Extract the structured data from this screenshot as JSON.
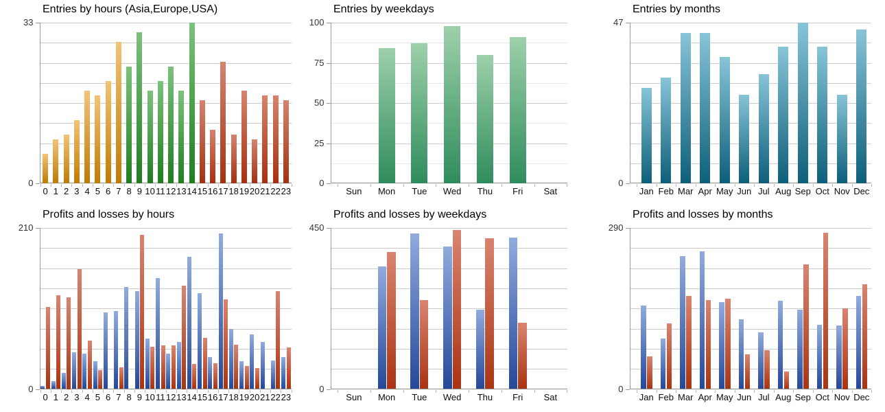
{
  "page": {
    "background": "#ffffff"
  },
  "chart_data": {
    "note": "see charts[]"
  },
  "charts": [
    {
      "id": "entries-by-hours",
      "type": "bar",
      "title": "Entries by hours (Asia,Europe,USA)",
      "categories": [
        "0",
        "1",
        "2",
        "3",
        "4",
        "5",
        "6",
        "7",
        "8",
        "9",
        "10",
        "11",
        "12",
        "13",
        "14",
        "15",
        "16",
        "17",
        "18",
        "19",
        "20",
        "21",
        "22",
        "23"
      ],
      "values": [
        6,
        9,
        10,
        13,
        19,
        18,
        21,
        29,
        24,
        31,
        19,
        21,
        24,
        19,
        33,
        17,
        11,
        25,
        10,
        19,
        9,
        18,
        18,
        17
      ],
      "color_groups": [
        {
          "name": "Asia",
          "from": 0,
          "to": 7,
          "color_top": "#F2C377",
          "color_bottom": "#C07A04"
        },
        {
          "name": "Europe",
          "from": 8,
          "to": 14,
          "color_top": "#7CC27C",
          "color_bottom": "#1F7D1F"
        },
        {
          "name": "USA",
          "from": 15,
          "to": 23,
          "color_top": "#D5836E",
          "color_bottom": "#A43110"
        }
      ],
      "ylim": [
        0,
        33
      ],
      "y_ticks": [
        {
          "value": 33,
          "label": "33"
        },
        {
          "value": 0,
          "label": "0"
        }
      ],
      "divisions": 8,
      "minor_alternate": false
    },
    {
      "id": "entries-by-weekdays",
      "type": "bar",
      "title": "Entries by weekdays",
      "categories": [
        "Sun",
        "Mon",
        "Tue",
        "Wed",
        "Thu",
        "Fri",
        "Sat"
      ],
      "values": [
        0,
        84,
        87,
        98,
        80,
        91,
        0
      ],
      "color_top": "#9DD0AB",
      "color_bottom": "#2F8C5D",
      "ylim": [
        0,
        100
      ],
      "y_ticks": [
        {
          "value": 100,
          "label": "100"
        },
        {
          "value": 75,
          "label": "75"
        },
        {
          "value": 50,
          "label": "50"
        },
        {
          "value": 25,
          "label": "25"
        },
        {
          "value": 0,
          "label": "0"
        }
      ],
      "divisions": 8,
      "minor_alternate": true
    },
    {
      "id": "entries-by-months",
      "type": "bar",
      "title": "Entries by months",
      "categories": [
        "Jan",
        "Feb",
        "Mar",
        "Apr",
        "May",
        "Jun",
        "Jul",
        "Aug",
        "Sep",
        "Oct",
        "Nov",
        "Dec"
      ],
      "values": [
        28,
        31,
        44,
        44,
        37,
        26,
        32,
        40,
        47,
        40,
        26,
        45
      ],
      "color_top": "#87C4D8",
      "color_bottom": "#0D5F79",
      "ylim": [
        0,
        47
      ],
      "y_ticks": [
        {
          "value": 47,
          "label": "47"
        },
        {
          "value": 0,
          "label": "0"
        }
      ],
      "divisions": 8,
      "minor_alternate": false
    },
    {
      "id": "profits-losses-by-hours",
      "type": "bar",
      "title": "Profits and losses by hours",
      "categories": [
        "0",
        "1",
        "2",
        "3",
        "4",
        "5",
        "6",
        "7",
        "8",
        "9",
        "10",
        "11",
        "12",
        "13",
        "14",
        "15",
        "16",
        "17",
        "18",
        "19",
        "20",
        "21",
        "22",
        "23"
      ],
      "series": [
        {
          "name": "profits",
          "color_top": "#91ABDD",
          "color_bottom": "#26489A",
          "values": [
            4,
            10,
            21,
            48,
            46,
            36,
            100,
            102,
            133,
            128,
            66,
            145,
            46,
            61,
            172,
            125,
            42,
            203,
            78,
            36,
            71,
            61,
            37,
            42
          ]
        },
        {
          "name": "losses",
          "color_top": "#D98470",
          "color_bottom": "#A93412",
          "values": [
            107,
            122,
            120,
            156,
            63,
            25,
            0,
            28,
            0,
            201,
            55,
            57,
            57,
            135,
            33,
            67,
            34,
            117,
            58,
            30,
            27,
            0,
            128,
            54
          ]
        }
      ],
      "ylim": [
        0,
        210
      ],
      "y_ticks": [
        {
          "value": 210,
          "label": "210"
        },
        {
          "value": 0,
          "label": "0"
        }
      ],
      "divisions": 8,
      "minor_alternate": false
    },
    {
      "id": "profits-losses-by-weekdays",
      "type": "bar",
      "title": "Profits and losses by weekdays",
      "categories": [
        "Sun",
        "Mon",
        "Tue",
        "Wed",
        "Thu",
        "Fri",
        "Sat"
      ],
      "series": [
        {
          "name": "profits",
          "color_top": "#91ABDD",
          "color_bottom": "#26489A",
          "values": [
            0,
            343,
            434,
            398,
            221,
            423,
            0
          ]
        },
        {
          "name": "losses",
          "color_top": "#D98470",
          "color_bottom": "#A93412",
          "values": [
            0,
            383,
            248,
            444,
            421,
            185,
            0
          ]
        }
      ],
      "ylim": [
        0,
        450
      ],
      "y_ticks": [
        {
          "value": 450,
          "label": "450"
        },
        {
          "value": 0,
          "label": "0"
        }
      ],
      "divisions": 8,
      "minor_alternate": false
    },
    {
      "id": "profits-losses-by-months",
      "type": "bar",
      "title": "Profits and losses by months",
      "categories": [
        "Jan",
        "Feb",
        "Mar",
        "Apr",
        "May",
        "Jun",
        "Jul",
        "Aug",
        "Sep",
        "Oct",
        "Nov",
        "Dec"
      ],
      "series": [
        {
          "name": "profits",
          "color_top": "#91ABDD",
          "color_bottom": "#26489A",
          "values": [
            150,
            91,
            239,
            248,
            156,
            125,
            102,
            159,
            143,
            116,
            115,
            168
          ]
        },
        {
          "name": "losses",
          "color_top": "#D98470",
          "color_bottom": "#A93412",
          "values": [
            59,
            118,
            167,
            160,
            163,
            62,
            70,
            32,
            224,
            281,
            145,
            189
          ]
        }
      ],
      "ylim": [
        0,
        290
      ],
      "y_ticks": [
        {
          "value": 290,
          "label": "290"
        },
        {
          "value": 0,
          "label": "0"
        }
      ],
      "divisions": 8,
      "minor_alternate": false
    }
  ]
}
